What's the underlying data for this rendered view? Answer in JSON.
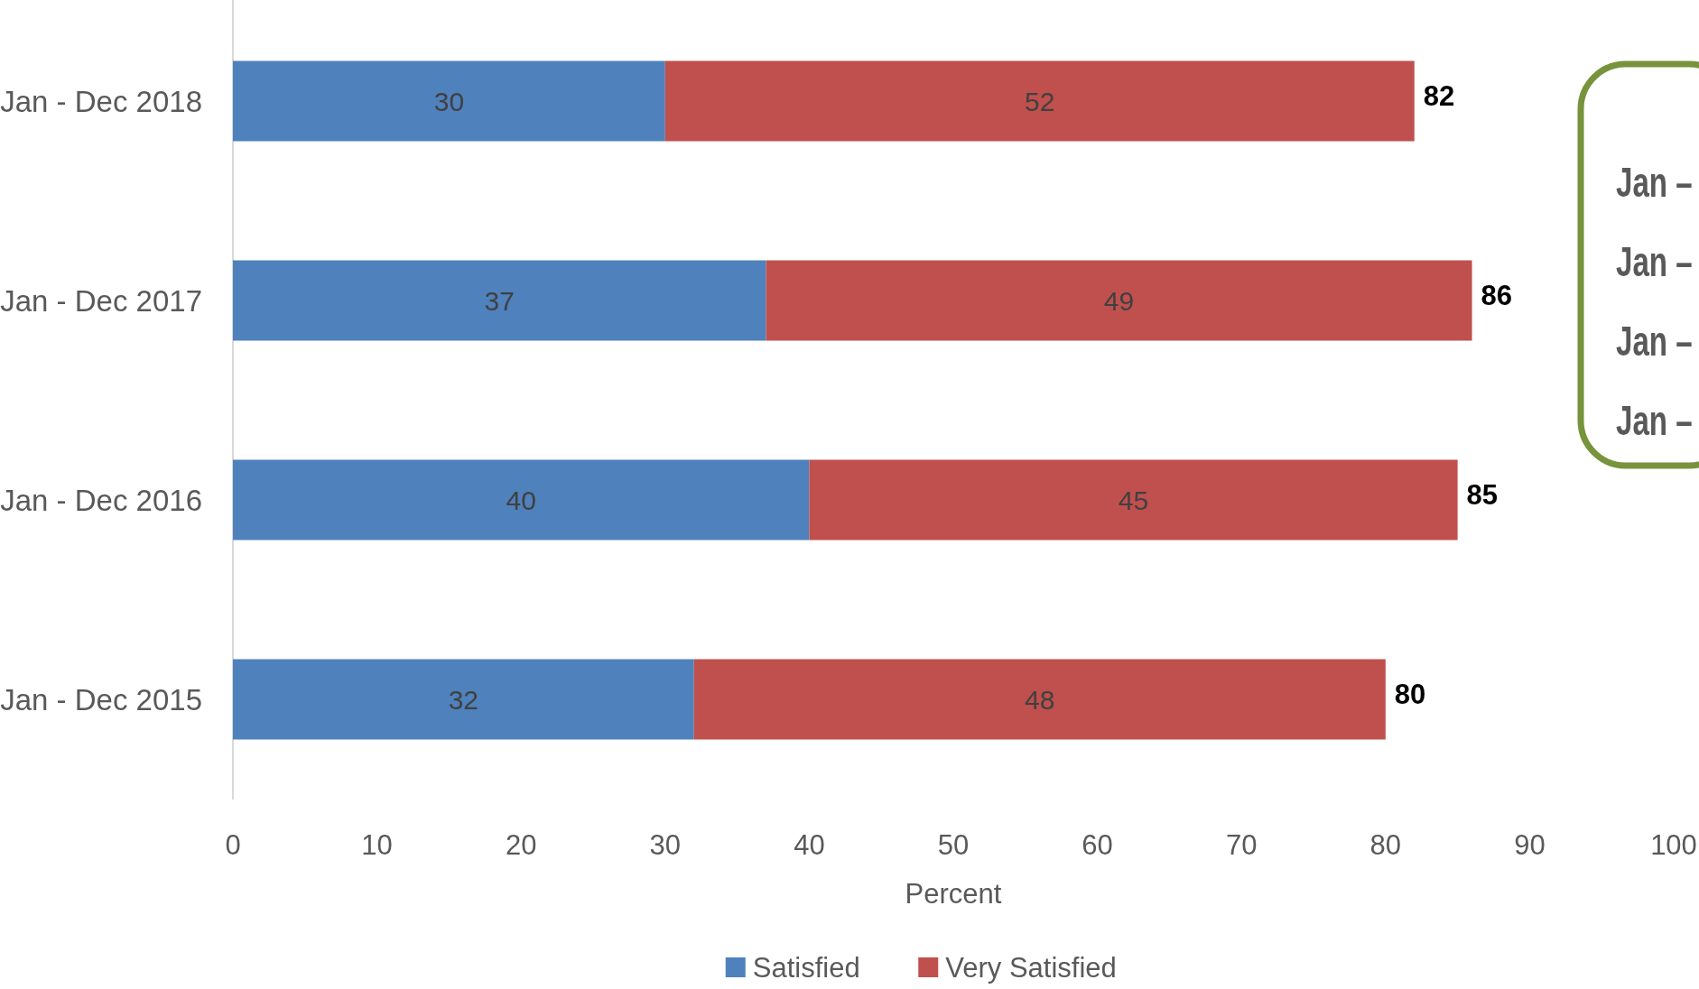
{
  "chart_data": {
    "type": "bar",
    "orientation": "horizontal",
    "stacked": true,
    "xlabel": "Percent",
    "categories": [
      "Jan - Dec 2018",
      "Jan - Dec 2017",
      "Jan - Dec 2016",
      "Jan - Dec 2015"
    ],
    "series": [
      {
        "name": "Satisfied",
        "color": "#4f81bd",
        "values": [
          30,
          37,
          40,
          32
        ]
      },
      {
        "name": "Very Satisfied",
        "color": "#c0504d",
        "values": [
          52,
          49,
          45,
          48
        ]
      }
    ],
    "totals": [
      "82",
      "86",
      "85",
      "80"
    ],
    "data_labels": true,
    "xlim": [
      0,
      100
    ],
    "xticks": [
      0,
      10,
      20,
      30,
      40,
      50,
      60,
      70,
      80,
      90,
      100
    ],
    "grid": false,
    "legend": "bottom",
    "annotations": [
      "Jan –",
      "Jan –",
      "Jan –",
      "Jan –"
    ]
  }
}
